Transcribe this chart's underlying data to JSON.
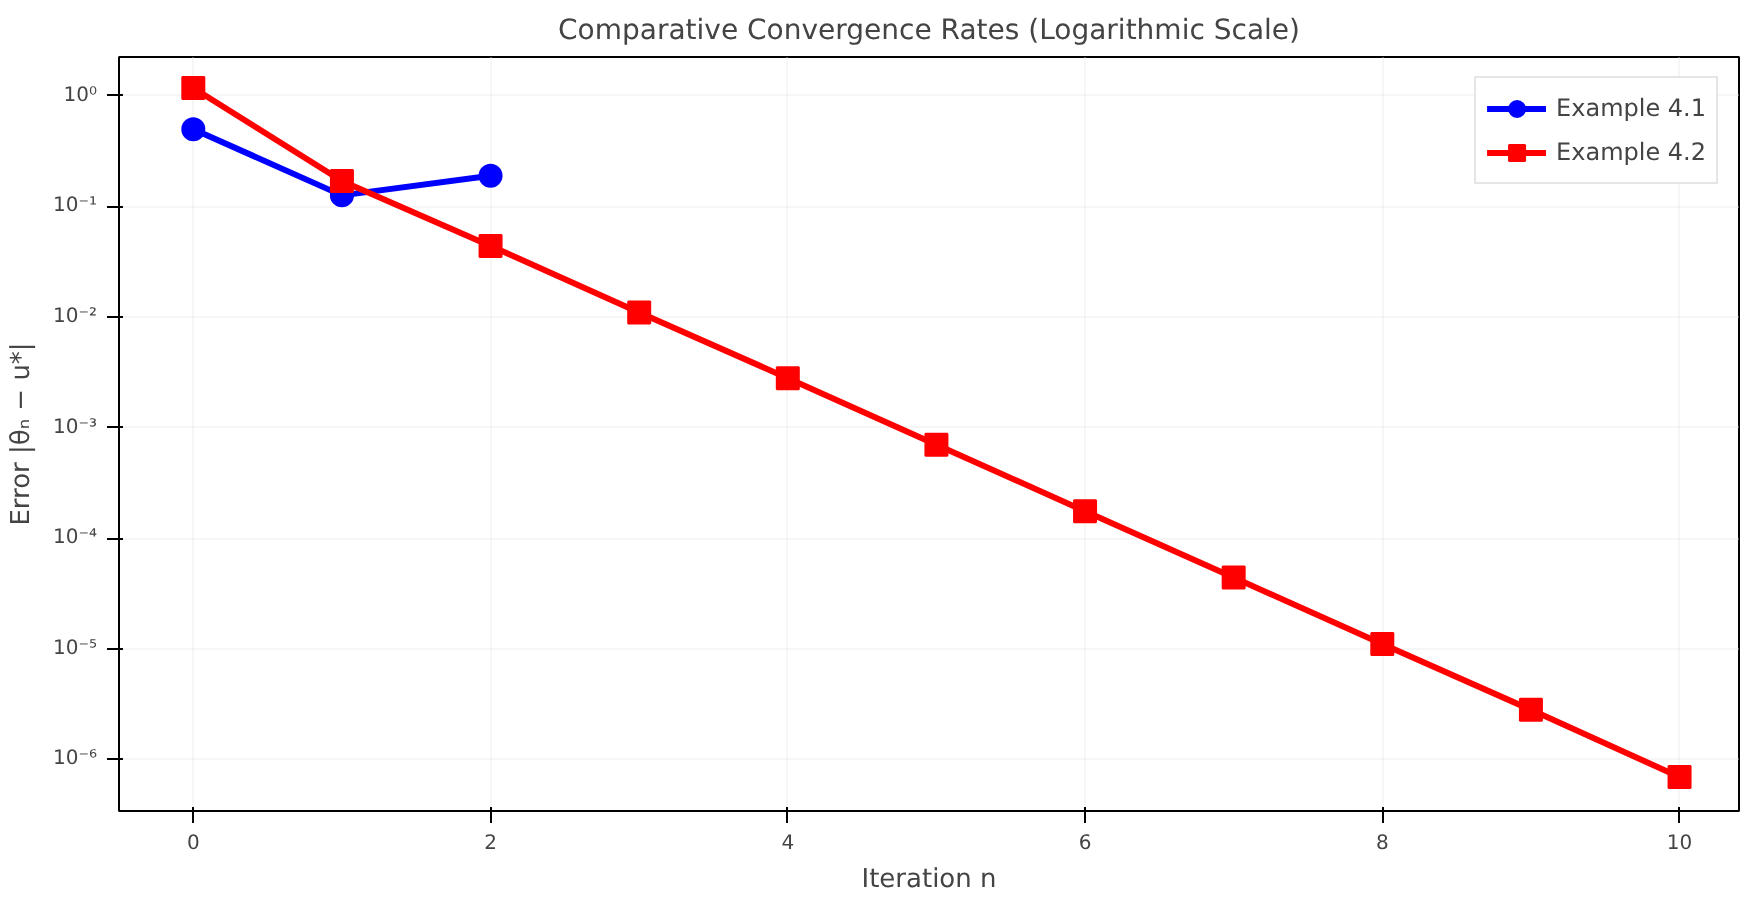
{
  "chart_data": {
    "type": "line",
    "title": "Comparative Convergence Rates (Logarithmic Scale)",
    "xlabel": "Iteration n",
    "ylabel": "Error |θₙ − u*|",
    "log": "y",
    "grid": true,
    "legend": "top right",
    "xlim": [
      -0.5,
      10.4
    ],
    "xticks": [
      0,
      2,
      4,
      6,
      8,
      10
    ],
    "ylim": [
      3.4e-07,
      2.25
    ],
    "yticks": [
      {
        "value": 1e-06,
        "label": "10⁻⁶"
      },
      {
        "value": 1e-05,
        "label": "10⁻⁵"
      },
      {
        "value": 0.0001,
        "label": "10⁻⁴"
      },
      {
        "value": 0.001,
        "label": "10⁻³"
      },
      {
        "value": 0.01,
        "label": "10⁻²"
      },
      {
        "value": 0.1,
        "label": "10⁻¹"
      },
      {
        "value": 1,
        "label": "10⁰"
      }
    ],
    "series": [
      {
        "name": "Example 4.1",
        "color": "#0000ff",
        "marker": "circle",
        "x": [
          0,
          1,
          2
        ],
        "values": [
          0.5,
          0.126,
          0.19
        ]
      },
      {
        "name": "Example 4.2",
        "color": "#ff0000",
        "marker": "square",
        "x": [
          0,
          1,
          2,
          3,
          4,
          5,
          6,
          7,
          8,
          9,
          10
        ],
        "values": [
          1.18,
          0.17,
          0.044,
          0.011,
          0.0028,
          0.0007,
          0.000175,
          4.4e-05,
          1.1e-05,
          2.8e-06,
          6.9e-07
        ]
      }
    ]
  }
}
